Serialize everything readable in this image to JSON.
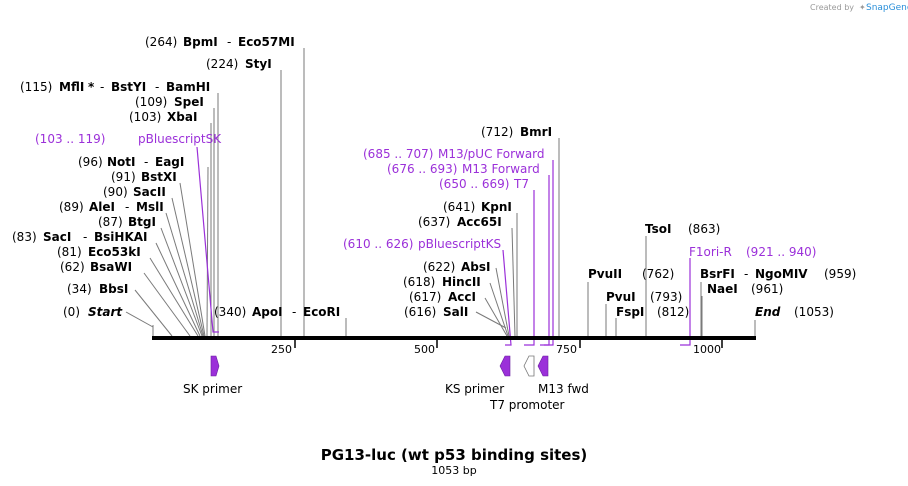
{
  "credit": {
    "prefix": "Created by",
    "brand": "SnapGene"
  },
  "title": "PG13-luc (wt p53 binding sites)",
  "subtitle": "1053 bp",
  "colors": {
    "backbone": "#000000",
    "feature": "#9b30d9",
    "leader": "#7a7a7a"
  },
  "ticks": [
    {
      "value": 250,
      "label": "250"
    },
    {
      "value": 500,
      "label": "500"
    },
    {
      "value": 750,
      "label": "750"
    },
    {
      "value": 1000,
      "label": "1000"
    }
  ],
  "sites": {
    "bpmi_pos": "(264)",
    "bpmi": "BpmI",
    "bpmi_sep": "-",
    "eco57mi": "Eco57MI",
    "styi_pos": "(224)",
    "styi": "StyI",
    "mfli_pos": "(115)",
    "mfli": "MflI",
    "mfli_star": "*",
    "mfli_sep1": "-",
    "bstyi": "BstYI",
    "mfli_sep2": "-",
    "bamhi": "BamHI",
    "spei_pos": "(109)",
    "spei": "SpeI",
    "xbai_pos": "(103)",
    "xbai": "XbaI",
    "pbsk_pos": "(103 .. 119)",
    "pbsk": "pBluescriptSK",
    "noti_pos": "(96)",
    "noti": "NotI",
    "noti_sep": "-",
    "eagi": "EagI",
    "bstxi_pos": "(91)",
    "bstxi": "BstXI",
    "sacii_pos": "(90)",
    "sacii": "SacII",
    "alei_pos": "(89)",
    "alei": "AleI",
    "alei_sep": "-",
    "msli": "MslI",
    "btgi_pos": "(87)",
    "btgi": "BtgI",
    "saci_pos": "(83)",
    "saci": "SacI",
    "saci_sep": "-",
    "bsihkai": "BsiHKAI",
    "eco53ki_pos": "(81)",
    "eco53ki": "Eco53kI",
    "bsawi_pos": "(62)",
    "bsawi": "BsaWI",
    "bbsi_pos": "(34)",
    "bbsi": "BbsI",
    "start_pos": "(0)",
    "start": "Start",
    "apoi_pos": "(340)",
    "apoi": "ApoI",
    "apoi_sep": "-",
    "ecori": "EcoRI",
    "bmri_pos": "(712)",
    "bmri": "BmrI",
    "m13puc_pos": "(685 .. 707)",
    "m13puc": "M13/pUC Forward",
    "m13f_pos": "(676 .. 693)",
    "m13f": "M13 Forward",
    "t7_pos": "(650 .. 669)",
    "t7": "T7",
    "kpni_pos": "(641)",
    "kpni": "KpnI",
    "acc65i_pos": "(637)",
    "acc65i": "Acc65I",
    "pbks_pos": "(610 .. 626)",
    "pbks": "pBluescriptKS",
    "absi_pos": "(622)",
    "absi": "AbsI",
    "hincii_pos": "(618)",
    "hincii": "HincII",
    "acci_pos": "(617)",
    "acci": "AccI",
    "sali_pos": "(616)",
    "sali": "SalI",
    "tsoi": "TsoI",
    "tsoi_pos": "(863)",
    "f1ori": "F1ori-R",
    "f1ori_pos": "(921 .. 940)",
    "pvuii": "PvuII",
    "pvuii_pos": "(762)",
    "pvui": "PvuI",
    "pvui_pos": "(793)",
    "fspi": "FspI",
    "fspi_pos": "(812)",
    "bsrfi": "BsrFI",
    "bsrfi_sep": "-",
    "ngomiv": "NgoMIV",
    "ngomiv_pos": "(959)",
    "naei": "NaeI",
    "naei_pos": "(961)",
    "end": "End",
    "end_pos": "(1053)"
  },
  "features": {
    "sk_primer": "SK primer",
    "ks_primer": "KS primer",
    "m13_fwd": "M13 fwd",
    "t7_promoter": "T7 promoter"
  }
}
